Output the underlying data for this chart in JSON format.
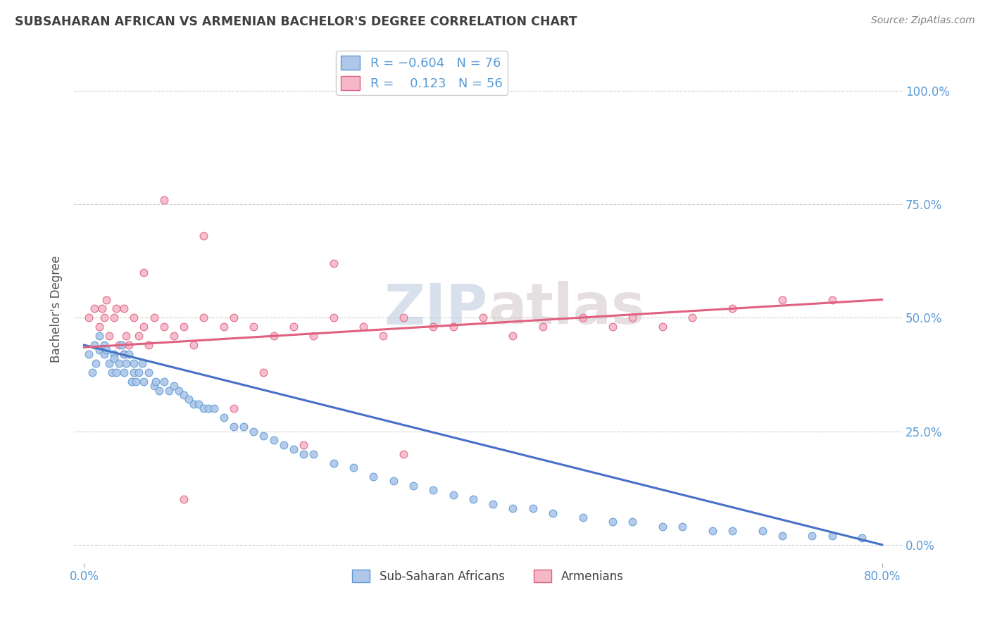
{
  "title": "SUBSAHARAN AFRICAN VS ARMENIAN BACHELOR'S DEGREE CORRELATION CHART",
  "source": "Source: ZipAtlas.com",
  "ylabel": "Bachelor's Degree",
  "xlim": [
    -0.01,
    0.82
  ],
  "ylim": [
    -0.04,
    1.08
  ],
  "xtick_positions": [
    0.0,
    0.8
  ],
  "xtick_labels": [
    "0.0%",
    "80.0%"
  ],
  "yticks": [
    0.0,
    0.25,
    0.5,
    0.75,
    1.0
  ],
  "ytick_labels": [
    "0.0%",
    "25.0%",
    "50.0%",
    "75.0%",
    "100.0%"
  ],
  "blue_color": "#aec6e8",
  "blue_edge_color": "#5b9bd5",
  "pink_color": "#f4b8c8",
  "pink_edge_color": "#e06080",
  "blue_line_color": "#4472c4",
  "pink_line_color": "#e06080",
  "legend_label1": "Sub-Saharan Africans",
  "legend_label2": "Armenians",
  "title_color": "#404040",
  "source_color": "#808080",
  "axis_color": "#5b9bd5",
  "blue_scatter_x": [
    0.005,
    0.008,
    0.01,
    0.012,
    0.015,
    0.015,
    0.02,
    0.02,
    0.022,
    0.025,
    0.028,
    0.03,
    0.03,
    0.032,
    0.035,
    0.038,
    0.04,
    0.04,
    0.042,
    0.045,
    0.048,
    0.05,
    0.05,
    0.052,
    0.055,
    0.058,
    0.06,
    0.065,
    0.07,
    0.072,
    0.075,
    0.08,
    0.085,
    0.09,
    0.095,
    0.1,
    0.105,
    0.11,
    0.115,
    0.12,
    0.125,
    0.13,
    0.14,
    0.15,
    0.16,
    0.17,
    0.18,
    0.19,
    0.2,
    0.21,
    0.22,
    0.23,
    0.25,
    0.27,
    0.29,
    0.31,
    0.33,
    0.35,
    0.37,
    0.39,
    0.41,
    0.43,
    0.45,
    0.47,
    0.5,
    0.53,
    0.55,
    0.58,
    0.6,
    0.63,
    0.65,
    0.68,
    0.7,
    0.73,
    0.75,
    0.78
  ],
  "blue_scatter_y": [
    0.42,
    0.38,
    0.44,
    0.4,
    0.43,
    0.46,
    0.42,
    0.44,
    0.43,
    0.4,
    0.38,
    0.42,
    0.41,
    0.38,
    0.4,
    0.44,
    0.42,
    0.38,
    0.4,
    0.42,
    0.36,
    0.4,
    0.38,
    0.36,
    0.38,
    0.4,
    0.36,
    0.38,
    0.35,
    0.36,
    0.34,
    0.36,
    0.34,
    0.35,
    0.34,
    0.33,
    0.32,
    0.31,
    0.31,
    0.3,
    0.3,
    0.3,
    0.28,
    0.26,
    0.26,
    0.25,
    0.24,
    0.23,
    0.22,
    0.21,
    0.2,
    0.2,
    0.18,
    0.17,
    0.15,
    0.14,
    0.13,
    0.12,
    0.11,
    0.1,
    0.09,
    0.08,
    0.08,
    0.07,
    0.06,
    0.05,
    0.05,
    0.04,
    0.04,
    0.03,
    0.03,
    0.03,
    0.02,
    0.02,
    0.02,
    0.015
  ],
  "pink_scatter_x": [
    0.005,
    0.01,
    0.015,
    0.018,
    0.02,
    0.022,
    0.025,
    0.03,
    0.032,
    0.035,
    0.04,
    0.042,
    0.045,
    0.05,
    0.055,
    0.06,
    0.065,
    0.07,
    0.08,
    0.09,
    0.1,
    0.11,
    0.12,
    0.14,
    0.15,
    0.17,
    0.19,
    0.21,
    0.23,
    0.25,
    0.28,
    0.3,
    0.32,
    0.35,
    0.37,
    0.4,
    0.43,
    0.46,
    0.5,
    0.53,
    0.55,
    0.58,
    0.61,
    0.65,
    0.7,
    0.75,
    0.32,
    0.12,
    0.08,
    0.25,
    0.18,
    0.22,
    0.1,
    0.15,
    0.06,
    0.04
  ],
  "pink_scatter_y": [
    0.5,
    0.52,
    0.48,
    0.52,
    0.5,
    0.54,
    0.46,
    0.5,
    0.52,
    0.44,
    0.52,
    0.46,
    0.44,
    0.5,
    0.46,
    0.48,
    0.44,
    0.5,
    0.48,
    0.46,
    0.48,
    0.44,
    0.5,
    0.48,
    0.5,
    0.48,
    0.46,
    0.48,
    0.46,
    0.5,
    0.48,
    0.46,
    0.5,
    0.48,
    0.48,
    0.5,
    0.46,
    0.48,
    0.5,
    0.48,
    0.5,
    0.48,
    0.5,
    0.52,
    0.54,
    0.54,
    0.2,
    0.68,
    0.76,
    0.62,
    0.38,
    0.22,
    0.1,
    0.3,
    0.6,
    0.42
  ],
  "blue_line_x": [
    0.0,
    0.8
  ],
  "blue_line_y": [
    0.44,
    0.0
  ],
  "pink_line_x": [
    0.0,
    0.8
  ],
  "pink_line_y": [
    0.435,
    0.54
  ],
  "background_color": "#ffffff",
  "grid_color": "#d0d0d0",
  "marker_size": 60
}
